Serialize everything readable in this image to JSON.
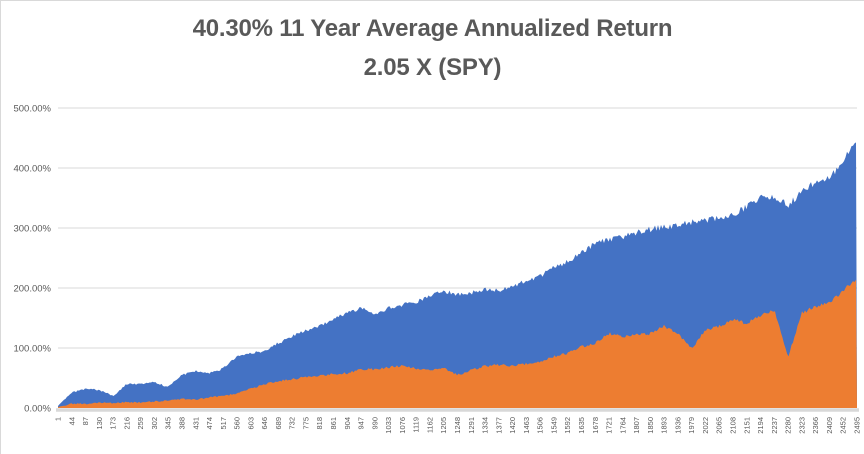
{
  "chart_data": {
    "type": "area",
    "title": "40.30% 11 Year Average Annualized Return 2.05 X (SPY)",
    "title_lines": [
      "40.30% 11 Year Average Annualized Return",
      "2.05 X (SPY)"
    ],
    "title_color": "#595959",
    "xlabel": "",
    "ylabel": "",
    "ylim": [
      0,
      500
    ],
    "grid": true,
    "legend": "none",
    "x_label_rotation": -90,
    "axis_text_color": "#595959",
    "gridline_color": "#d9d9d9",
    "axis_line_color": "#d8d8d8",
    "y_ticks": [
      "0.00%",
      "100.00%",
      "200.00%",
      "300.00%",
      "400.00%",
      "500.00%"
    ],
    "x": [
      1,
      44,
      87,
      130,
      173,
      216,
      259,
      302,
      345,
      388,
      431,
      474,
      517,
      560,
      603,
      646,
      689,
      732,
      775,
      818,
      861,
      904,
      947,
      990,
      1033,
      1076,
      1119,
      1162,
      1205,
      1248,
      1291,
      1334,
      1377,
      1420,
      1463,
      1506,
      1549,
      1592,
      1635,
      1678,
      1721,
      1764,
      1807,
      1850,
      1893,
      1936,
      1979,
      2022,
      2065,
      2108,
      2151,
      2194,
      2237,
      2280,
      2323,
      2366,
      2409,
      2452,
      2495
    ],
    "series": [
      {
        "name": "series-1-blue",
        "color": "#4472C4",
        "values": [
          3,
          26,
          32,
          30,
          20,
          40,
          40,
          43,
          35,
          55,
          62,
          58,
          66,
          87,
          92,
          95,
          108,
          120,
          129,
          137,
          148,
          159,
          166,
          157,
          166,
          172,
          176,
          187,
          194,
          190,
          192,
          197,
          197,
          201,
          213,
          220,
          234,
          244,
          258,
          275,
          280,
          286,
          293,
          298,
          302,
          305,
          310,
          313,
          318,
          322,
          335,
          352,
          352,
          338,
          360,
          377,
          383,
          410,
          450
        ]
      },
      {
        "name": "series-2-orange",
        "color": "#ED7D31",
        "values": [
          2,
          7,
          7,
          9,
          8,
          10,
          9,
          11,
          12,
          15,
          14,
          18,
          20,
          24,
          32,
          40,
          45,
          48,
          52,
          54,
          57,
          58,
          65,
          64,
          68,
          70,
          66,
          63,
          66,
          55,
          63,
          70,
          72,
          70,
          74,
          77,
          86,
          91,
          102,
          108,
          124,
          119,
          122,
          124,
          136,
          124,
          98,
          130,
          136,
          147,
          141,
          155,
          163,
          86,
          158,
          169,
          174,
          196,
          215
        ]
      }
    ]
  }
}
